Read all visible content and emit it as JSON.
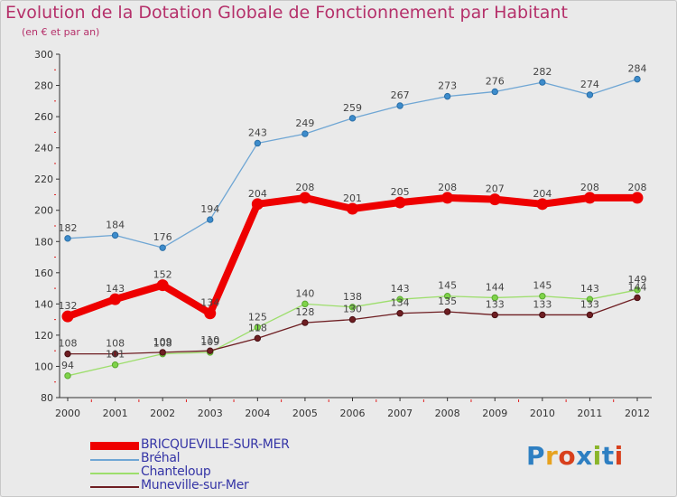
{
  "title": "Evolution de la Dotation Globale de Fonctionnement par Habitant",
  "subtitle": "(en € et par an)",
  "brand": {
    "text": "Proxiti",
    "letters": [
      "P",
      "r",
      "o",
      "x",
      "i",
      "t",
      "i"
    ],
    "colors": [
      "#2e7fc2",
      "#e7a21f",
      "#d8401d",
      "#2e7fc2",
      "#8ab52b",
      "#2e7fc2",
      "#d8401d"
    ]
  },
  "chart_data": {
    "type": "line",
    "title": "Evolution de la Dotation Globale de Fonctionnement par Habitant",
    "subtitle": "(en € et par an)",
    "x": [
      "2000",
      "2001",
      "2002",
      "2003",
      "2004",
      "2005",
      "2006",
      "2007",
      "2008",
      "2009",
      "2010",
      "2011",
      "2012"
    ],
    "ylim": [
      80,
      300
    ],
    "yticks": [
      80,
      100,
      120,
      140,
      160,
      180,
      200,
      220,
      240,
      260,
      280,
      300
    ],
    "grid": false,
    "legend_position": "bottom-left",
    "series": [
      {
        "name": "BRICQUEVILLE-SUR-MER",
        "color": "#ee0000",
        "values": [
          132,
          143,
          152,
          134,
          204,
          208,
          201,
          205,
          208,
          207,
          204,
          208,
          208
        ],
        "labels": [
          "132",
          "143",
          "152",
          "134",
          "204",
          "208",
          "201",
          "205",
          "208",
          "207",
          "204",
          "208",
          "208"
        ]
      },
      {
        "name": "Bréhal",
        "color": "#6fa6d4",
        "values": [
          182,
          184,
          176,
          194,
          243,
          249,
          259,
          267,
          273,
          276,
          282,
          274,
          284
        ],
        "labels": [
          "182",
          "184",
          "176",
          "194",
          "243",
          "249",
          "259",
          "267",
          "273",
          "276",
          "282",
          "274",
          "284"
        ]
      },
      {
        "name": "Chanteloup",
        "color": "#9dde6c",
        "values": [
          94,
          101,
          108,
          109,
          125,
          140,
          138,
          143,
          145,
          144,
          145,
          143,
          149
        ],
        "labels": [
          "94",
          "101",
          "108",
          "109",
          "125",
          "140",
          "138",
          "143",
          "145",
          "144",
          "145",
          "143",
          "149"
        ]
      },
      {
        "name": "Muneville-sur-Mer",
        "color": "#6e1e22",
        "values": [
          108,
          108,
          109,
          110,
          118,
          128,
          130,
          134,
          135,
          133,
          133,
          133,
          144
        ],
        "labels": [
          "108",
          "108",
          "109",
          "110",
          "118",
          "128",
          "130",
          "134",
          "135",
          "133",
          "133",
          "133",
          "144"
        ]
      }
    ]
  }
}
